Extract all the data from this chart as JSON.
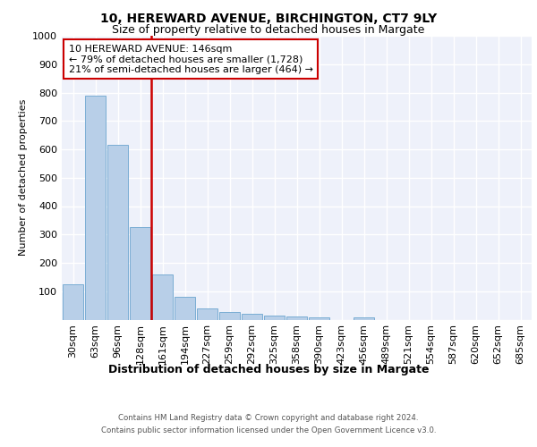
{
  "title1": "10, HEREWARD AVENUE, BIRCHINGTON, CT7 9LY",
  "title2": "Size of property relative to detached houses in Margate",
  "xlabel": "Distribution of detached houses by size in Margate",
  "ylabel": "Number of detached properties",
  "bar_labels": [
    "30sqm",
    "63sqm",
    "96sqm",
    "128sqm",
    "161sqm",
    "194sqm",
    "227sqm",
    "259sqm",
    "292sqm",
    "325sqm",
    "358sqm",
    "390sqm",
    "423sqm",
    "456sqm",
    "489sqm",
    "521sqm",
    "554sqm",
    "587sqm",
    "620sqm",
    "652sqm",
    "685sqm"
  ],
  "bar_values": [
    125,
    790,
    615,
    325,
    160,
    80,
    40,
    28,
    22,
    15,
    10,
    8,
    0,
    7,
    0,
    0,
    0,
    0,
    0,
    0,
    0
  ],
  "bar_color": "#b8cfe8",
  "bar_edge_color": "#7aadd4",
  "vline_x": 3.5,
  "annotation_text": "10 HEREWARD AVENUE: 146sqm\n← 79% of detached houses are smaller (1,728)\n21% of semi-detached houses are larger (464) →",
  "vline_color": "#cc0000",
  "footer1": "Contains HM Land Registry data © Crown copyright and database right 2024.",
  "footer2": "Contains public sector information licensed under the Open Government Licence v3.0.",
  "ylim": [
    0,
    1000
  ],
  "yticks": [
    0,
    100,
    200,
    300,
    400,
    500,
    600,
    700,
    800,
    900,
    1000
  ],
  "plot_bg_color": "#eef1fa",
  "title1_fontsize": 10,
  "title2_fontsize": 9,
  "ylabel_fontsize": 8,
  "xlabel_fontsize": 9,
  "tick_fontsize": 8,
  "annot_fontsize": 8
}
